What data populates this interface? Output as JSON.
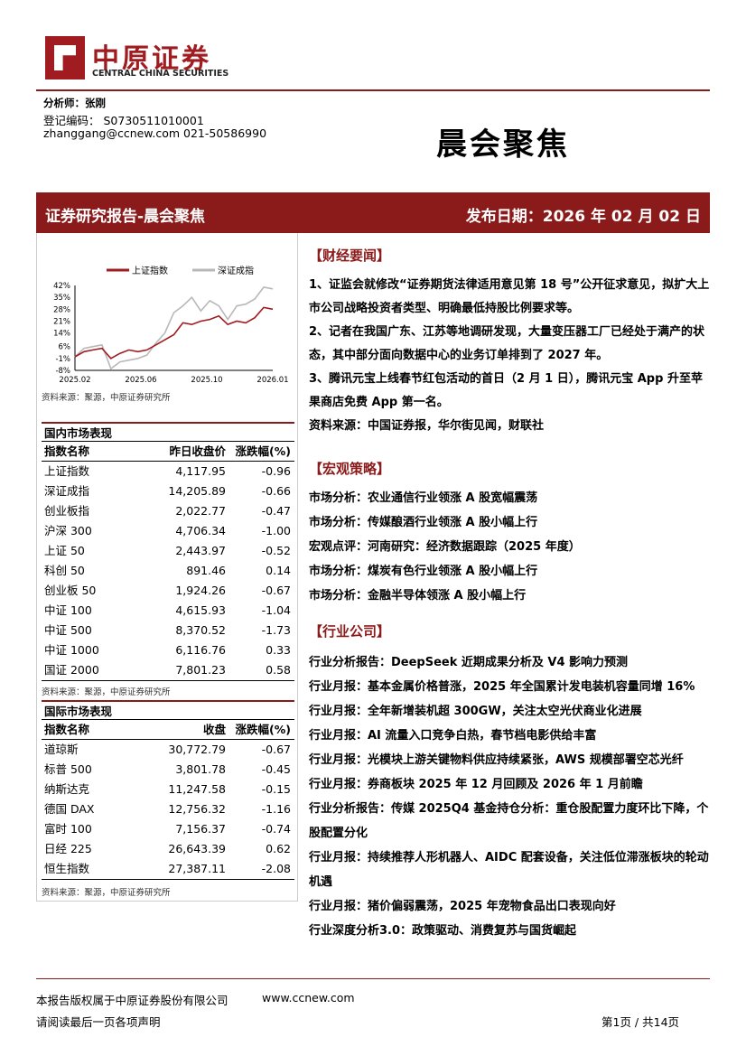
{
  "logo": {
    "cn": "中原证券",
    "en": "CENTRAL CHINA SECURITIES"
  },
  "analyst": {
    "name_line": "分析师：张刚",
    "reg_line": "登记编码：  S0730511010001",
    "contact_line": "zhanggang@ccnew.com 021-50586990"
  },
  "title": "晨会聚焦",
  "banner": {
    "left": "证券研究报告-晨会聚焦",
    "right": "发布日期：2026 年 02 月 02 日"
  },
  "chart_data": {
    "type": "line",
    "legend": [
      "上证指数",
      "深证成指"
    ],
    "legend_position": "top",
    "x_ticks": [
      "2025.02",
      "2025.06",
      "2025.10",
      "2026.01"
    ],
    "y_ticks": [
      "42%",
      "35%",
      "28%",
      "21%",
      "14%",
      "6%",
      "-1%",
      "-8%"
    ],
    "ylim": [
      -8,
      42
    ],
    "series": [
      {
        "name": "上证指数",
        "color": "#a01c20",
        "values": [
          0,
          3,
          4,
          5,
          -1,
          2,
          4,
          3,
          4,
          7,
          10,
          13,
          20,
          19,
          21,
          22,
          24,
          19,
          21,
          20,
          23,
          29,
          28
        ]
      },
      {
        "name": "深证成指",
        "color": "#b8b8b8",
        "values": [
          0,
          5,
          6,
          7,
          -7,
          -3,
          -2,
          -1,
          1,
          8,
          14,
          26,
          30,
          35,
          27,
          33,
          30,
          22,
          30,
          31,
          34,
          41,
          40
        ]
      }
    ],
    "source": "资料来源：聚源，中原证券研究所"
  },
  "domestic": {
    "title": "国内市场表现",
    "headers": [
      "指数名称",
      "昨日收盘价",
      "涨跌幅(%)"
    ],
    "rows": [
      [
        "上证指数",
        "4,117.95",
        "-0.96"
      ],
      [
        "深证成指",
        "14,205.89",
        "-0.66"
      ],
      [
        "创业板指",
        "2,022.77",
        "-0.47"
      ],
      [
        "沪深 300",
        "4,706.34",
        "-1.00"
      ],
      [
        "上证 50",
        "2,443.97",
        "-0.52"
      ],
      [
        "科创 50",
        "891.46",
        "0.14"
      ],
      [
        "创业板 50",
        "1,924.26",
        "-0.67"
      ],
      [
        "中证 100",
        "4,615.93",
        "-1.04"
      ],
      [
        "中证 500",
        "8,370.52",
        "-1.73"
      ],
      [
        "中证 1000",
        "6,116.76",
        "0.33"
      ],
      [
        "国证 2000",
        "7,801.23",
        "0.58"
      ]
    ],
    "source": "资料来源：聚源，中原证券研究所"
  },
  "international": {
    "title": "国际市场表现",
    "headers": [
      "指数名称",
      "收盘",
      "涨跌幅(%)"
    ],
    "rows": [
      [
        "道琼斯",
        "30,772.79",
        "-0.67"
      ],
      [
        "标普 500",
        "3,801.78",
        "-0.45"
      ],
      [
        "纳斯达克",
        "11,247.58",
        "-0.15"
      ],
      [
        "德国 DAX",
        "12,756.32",
        "-1.16"
      ],
      [
        "富时 100",
        "7,156.37",
        "-0.74"
      ],
      [
        "日经 225",
        "26,643.39",
        "0.62"
      ],
      [
        "恒生指数",
        "27,387.11",
        "-2.08"
      ]
    ],
    "source": "资料来源：聚源，中原证券研究所"
  },
  "finance_news": {
    "title": "【财经要闻】",
    "items": [
      "1、证监会就修改“证券期货法律适用意见第 18 号”公开征求意见，拟扩大上市公司战略投资者类型、明确最低持股比例要求等。",
      "2、记者在我国广东、江苏等地调研发现，大量变压器工厂已经处于满产的状态，其中部分面向数据中心的业务订单排到了 2027 年。",
      "3、腾讯元宝上线春节红包活动的首日（2 月 1 日），腾讯元宝 App 升至苹果商店免费 App 第一名。"
    ],
    "source": "资料来源：中国证券报，华尔街见闻，财联社"
  },
  "macro": {
    "title": "【宏观策略】",
    "items": [
      "市场分析：农业通信行业领涨  A 股宽幅震荡",
      "市场分析：传媒酿酒行业领涨  A 股小幅上行",
      "宏观点评：河南研究：经济数据跟踪（2025 年度）",
      "市场分析：煤炭有色行业领涨  A 股小幅上行",
      "市场分析：金融半导体领涨  A 股小幅上行"
    ]
  },
  "industry": {
    "title": "【行业公司】",
    "items": [
      "行业分析报告：DeepSeek 近期成果分析及 V4 影响力预测",
      "行业月报：基本金属价格普涨，2025 年全国累计发电装机容量同增 16%",
      "行业月报：全年新增装机超 300GW，关注太空光伏商业化进展",
      "行业月报：AI 流量入口竞争白热，春节档电影供给丰富",
      "行业月报：光模块上游关键物料供应持续紧张，AWS 规模部署空芯光纤",
      "行业月报：券商板块 2025 年 12 月回顾及 2026 年 1 月前瞻",
      "行业分析报告：传媒 2025Q4 基金持仓分析：重仓股配置力度环比下降，个股配置分化",
      "行业月报：持续推荐人形机器人、AIDC 配套设备，关注低位滞涨板块的轮动机遇",
      "行业月报：猪价偏弱震荡，2025 年宠物食品出口表现向好",
      "行业深度分析3.0：政策驱动、消费复苏与国货崛起"
    ]
  },
  "footer": {
    "copyright": "本报告版权属于中原证券股份有限公司",
    "website": "www.ccnew.com",
    "disclaimer": "请阅读最后一页各项声明",
    "page": "第1页 / 共14页"
  }
}
